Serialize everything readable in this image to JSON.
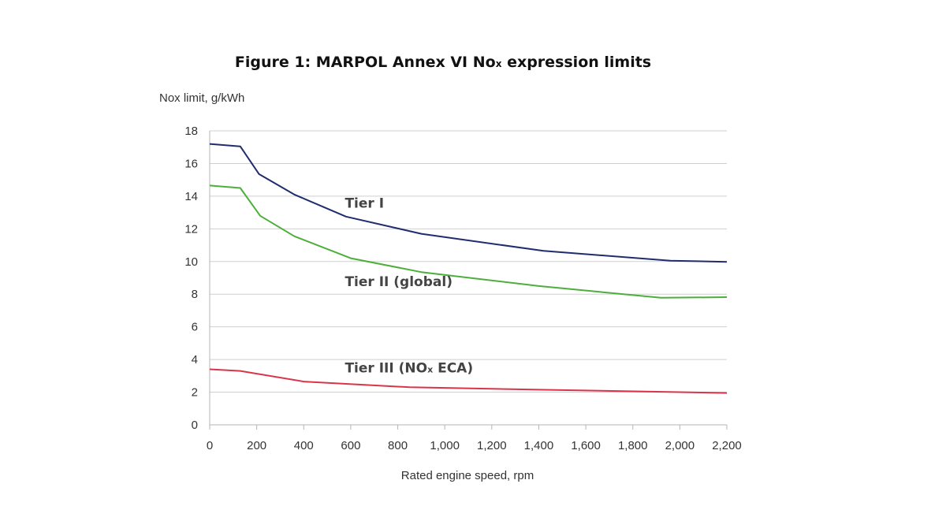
{
  "chart_data": {
    "type": "line",
    "title": "Figure 1: MARPOL Annex VI No",
    "title_subscript": "x",
    "title_suffix": " expression limits",
    "xlabel": "Rated engine speed, rpm",
    "ylabel": "Nox limit, g/kWh",
    "xlim": [
      0,
      2200
    ],
    "ylim": [
      0,
      18
    ],
    "x_ticks": [
      0,
      200,
      400,
      600,
      800,
      1000,
      1200,
      1400,
      1600,
      1800,
      2000,
      2200
    ],
    "x_tick_labels": [
      "0",
      "200",
      "400",
      "600",
      "800",
      "1,000",
      "1,200",
      "1,400",
      "1,600",
      "1,800",
      "2,000",
      "2,200"
    ],
    "y_ticks": [
      0,
      2,
      4,
      6,
      8,
      10,
      12,
      14,
      16,
      18
    ],
    "y_tick_labels": [
      "0",
      "2",
      "4",
      "6",
      "8",
      "10",
      "12",
      "14",
      "16",
      "18"
    ],
    "grid": "horizontal",
    "series": [
      {
        "name": "Tier I",
        "color": "#1f2d6e",
        "x": [
          0,
          130,
          210,
          360,
          580,
          900,
          1420,
          1960,
          2200
        ],
        "y": [
          17.2,
          17.05,
          15.35,
          14.1,
          12.75,
          11.7,
          10.65,
          10.05,
          9.98
        ]
      },
      {
        "name": "Tier II (global)",
        "color": "#4caf3a",
        "x": [
          0,
          130,
          215,
          360,
          600,
          900,
          1400,
          1920,
          2200
        ],
        "y": [
          14.65,
          14.5,
          12.8,
          11.55,
          10.2,
          9.35,
          8.5,
          7.78,
          7.82
        ]
      },
      {
        "name": "Tier III (NO",
        "name_subscript": "x",
        "name_suffix": " ECA)",
        "color": "#d9354a",
        "x": [
          0,
          130,
          400,
          850,
          1400,
          2200
        ],
        "y": [
          3.4,
          3.3,
          2.65,
          2.3,
          2.15,
          1.95
        ]
      }
    ],
    "annotations": [
      {
        "series": 0,
        "x": 575,
        "y": 13.3
      },
      {
        "series": 1,
        "x": 575,
        "y": 8.5
      },
      {
        "series": 2,
        "x": 575,
        "y": 3.2
      }
    ]
  }
}
